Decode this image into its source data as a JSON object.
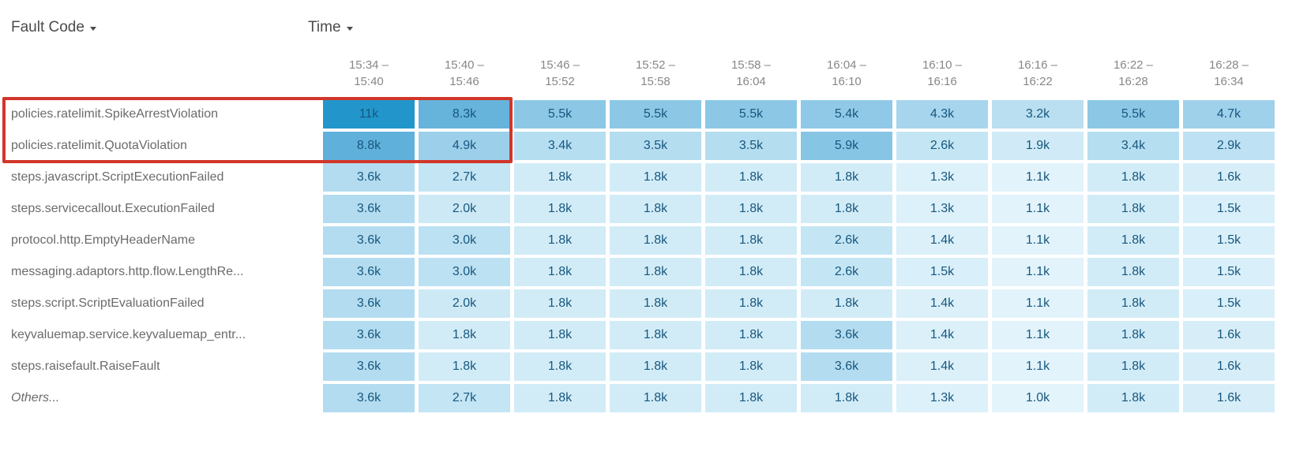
{
  "header": {
    "fault_code_label": "Fault Code",
    "time_label": "Time"
  },
  "colors": {
    "highlight_border": "#d2362a",
    "cell_text": "#17577e",
    "row_label_text": "#6b6b6b",
    "dropdown_text": "#4b4b4b",
    "column_header_text": "#85878a",
    "scale": [
      {
        "value": 1.0,
        "color": "#E4F4FB"
      },
      {
        "value": 1.8,
        "color": "#D2ECF7"
      },
      {
        "value": 2.0,
        "color": "#CDE9F6"
      },
      {
        "value": 2.7,
        "color": "#C3E5F4"
      },
      {
        "value": 3.0,
        "color": "#BCE1F2"
      },
      {
        "value": 3.6,
        "color": "#B3DCF0"
      },
      {
        "value": 4.9,
        "color": "#9CCFEA"
      },
      {
        "value": 5.5,
        "color": "#8CC8E6"
      },
      {
        "value": 8.3,
        "color": "#66B3DC"
      },
      {
        "value": 8.8,
        "color": "#5FB0DB"
      },
      {
        "value": 11.0,
        "color": "#2296CB"
      }
    ]
  },
  "chart_data": {
    "type": "heatmap",
    "x_dimension": "Time",
    "y_dimension": "Fault Code",
    "unit": "k (thousands of faults)",
    "legend_position": "none",
    "columns": [
      {
        "line1": "15:34 –",
        "line2": "15:40"
      },
      {
        "line1": "15:40 –",
        "line2": "15:46"
      },
      {
        "line1": "15:46 –",
        "line2": "15:52"
      },
      {
        "line1": "15:52 –",
        "line2": "15:58"
      },
      {
        "line1": "15:58 –",
        "line2": "16:04"
      },
      {
        "line1": "16:04 –",
        "line2": "16:10"
      },
      {
        "line1": "16:10 –",
        "line2": "16:16"
      },
      {
        "line1": "16:16 –",
        "line2": "16:22"
      },
      {
        "line1": "16:22 –",
        "line2": "16:28"
      },
      {
        "line1": "16:28 –",
        "line2": "16:34"
      }
    ],
    "rows": [
      {
        "label": "policies.ratelimit.SpikeArrestViolation",
        "values": [
          "11k",
          "8.3k",
          "5.5k",
          "5.5k",
          "5.5k",
          "5.4k",
          "4.3k",
          "3.2k",
          "5.5k",
          "4.7k"
        ],
        "highlighted": true,
        "italic": false
      },
      {
        "label": "policies.ratelimit.QuotaViolation",
        "values": [
          "8.8k",
          "4.9k",
          "3.4k",
          "3.5k",
          "3.5k",
          "5.9k",
          "2.6k",
          "1.9k",
          "3.4k",
          "2.9k"
        ],
        "highlighted": true,
        "italic": false
      },
      {
        "label": "steps.javascript.ScriptExecutionFailed",
        "values": [
          "3.6k",
          "2.7k",
          "1.8k",
          "1.8k",
          "1.8k",
          "1.8k",
          "1.3k",
          "1.1k",
          "1.8k",
          "1.6k"
        ],
        "highlighted": false,
        "italic": false
      },
      {
        "label": "steps.servicecallout.ExecutionFailed",
        "values": [
          "3.6k",
          "2.0k",
          "1.8k",
          "1.8k",
          "1.8k",
          "1.8k",
          "1.3k",
          "1.1k",
          "1.8k",
          "1.5k"
        ],
        "highlighted": false,
        "italic": false
      },
      {
        "label": "protocol.http.EmptyHeaderName",
        "values": [
          "3.6k",
          "3.0k",
          "1.8k",
          "1.8k",
          "1.8k",
          "2.6k",
          "1.4k",
          "1.1k",
          "1.8k",
          "1.5k"
        ],
        "highlighted": false,
        "italic": false
      },
      {
        "label": "messaging.adaptors.http.flow.LengthRe...",
        "values": [
          "3.6k",
          "3.0k",
          "1.8k",
          "1.8k",
          "1.8k",
          "2.6k",
          "1.5k",
          "1.1k",
          "1.8k",
          "1.5k"
        ],
        "highlighted": false,
        "italic": false
      },
      {
        "label": "steps.script.ScriptEvaluationFailed",
        "values": [
          "3.6k",
          "2.0k",
          "1.8k",
          "1.8k",
          "1.8k",
          "1.8k",
          "1.4k",
          "1.1k",
          "1.8k",
          "1.5k"
        ],
        "highlighted": false,
        "italic": false
      },
      {
        "label": "keyvaluemap.service.keyvaluemap_entr...",
        "values": [
          "3.6k",
          "1.8k",
          "1.8k",
          "1.8k",
          "1.8k",
          "3.6k",
          "1.4k",
          "1.1k",
          "1.8k",
          "1.6k"
        ],
        "highlighted": false,
        "italic": false
      },
      {
        "label": "steps.raisefault.RaiseFault",
        "values": [
          "3.6k",
          "1.8k",
          "1.8k",
          "1.8k",
          "1.8k",
          "3.6k",
          "1.4k",
          "1.1k",
          "1.8k",
          "1.6k"
        ],
        "highlighted": false,
        "italic": false
      },
      {
        "label": "Others...",
        "values": [
          "3.6k",
          "2.7k",
          "1.8k",
          "1.8k",
          "1.8k",
          "1.8k",
          "1.3k",
          "1.0k",
          "1.8k",
          "1.6k"
        ],
        "highlighted": false,
        "italic": true
      }
    ]
  }
}
